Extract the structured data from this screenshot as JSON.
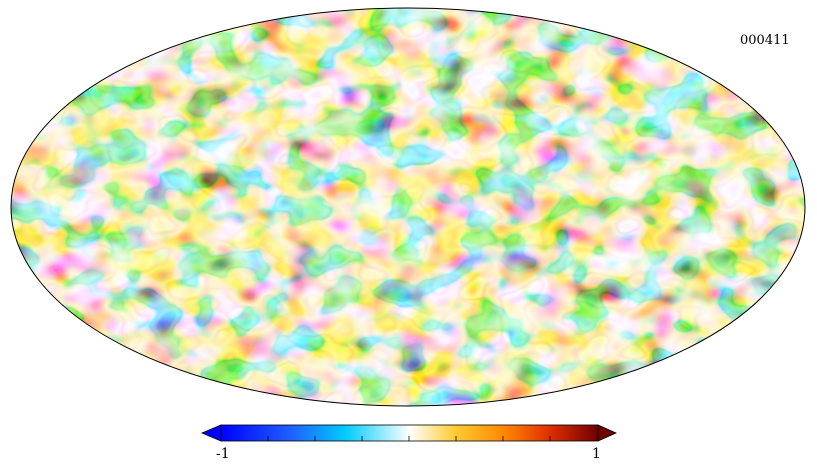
{
  "map": {
    "label": "000411",
    "projection": "mollweide",
    "colormap": [
      "#0000ff",
      "#1f5cff",
      "#00ccff",
      "#ffffff",
      "#ffcc33",
      "#ff8800",
      "#e03000",
      "#700000"
    ]
  },
  "colorbar": {
    "min_label": "-1",
    "max_label": "1",
    "min": -1,
    "max": 1,
    "extend": "both"
  }
}
